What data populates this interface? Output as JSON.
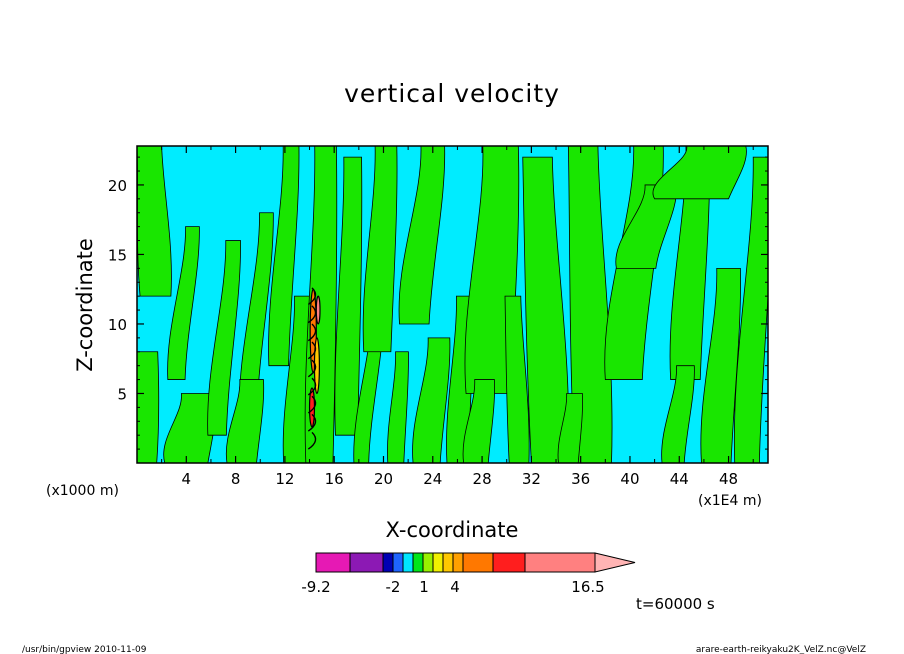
{
  "chart_data": {
    "type": "heatmap",
    "title": "vertical velocity",
    "xlabel": "X-coordinate",
    "ylabel": "Z-coordinate",
    "x_unit_left": "(x1000 m)",
    "x_unit_right": "(x1E4 m)",
    "xlim": [
      0,
      51.2
    ],
    "ylim": [
      0,
      22.8
    ],
    "xticks": [
      4,
      8,
      12,
      16,
      20,
      24,
      28,
      32,
      36,
      40,
      44,
      48
    ],
    "yticks": [
      5,
      10,
      15,
      20
    ],
    "time_label": "t=60000 s",
    "colorbar": {
      "labels": [
        {
          "text": "-9.2",
          "value": -9.2
        },
        {
          "text": "-2",
          "value": -2
        },
        {
          "text": "1",
          "value": 1
        },
        {
          "text": "4",
          "value": 4
        },
        {
          "text": "16.5",
          "value": 16.5
        }
      ],
      "colors": [
        "#e619b4",
        "#8c19b4",
        "#0000b4",
        "#1e64ff",
        "#00e6ff",
        "#00e619",
        "#98f000",
        "#f0f000",
        "#ffc800",
        "#ffa000",
        "#ff7800",
        "#ff1e1e",
        "#ff8080",
        "#ffb4b4"
      ],
      "extend": "max"
    },
    "field_colors": {
      "background": "#00ecff",
      "positive": "#19e600",
      "strong": "#ff7800"
    }
  },
  "footer": {
    "left": "/usr/bin/gpview   2010-11-09",
    "right": "arare-earth-reikyaku2K_VelZ.nc@VelZ"
  }
}
